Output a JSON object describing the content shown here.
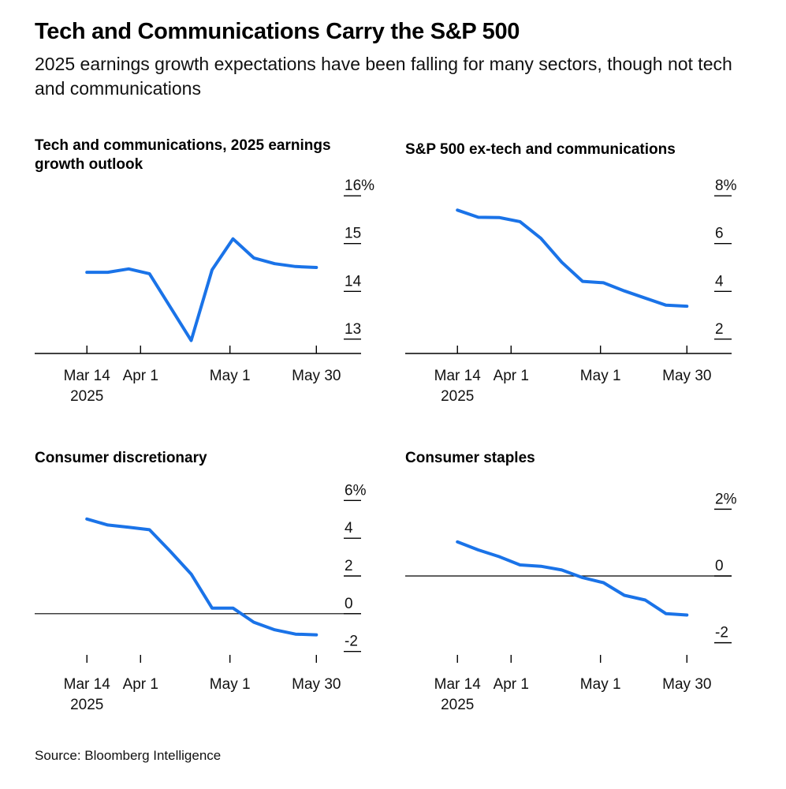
{
  "header": {
    "title": "Tech and Communications Carry the S&P 500",
    "subtitle": "2025 earnings growth expectations have been falling for many sectors, though not tech and communications"
  },
  "footer": {
    "source": "Source: Bloomberg Intelligence"
  },
  "colors": {
    "line": "#1a73e8",
    "axis": "#000000",
    "text": "#111111"
  },
  "chart_data": [
    {
      "type": "line",
      "title": "Tech and communications, 2025 earnings growth outlook",
      "title_lines": [
        "Tech and communications, 2025 earnings",
        "growth outlook"
      ],
      "x_ticks": [
        {
          "day": 0,
          "label": "Mar 14",
          "sublabel": "2025"
        },
        {
          "day": 18,
          "label": "Apr 1"
        },
        {
          "day": 48,
          "label": "May 1"
        },
        {
          "day": 77,
          "label": "May 30"
        }
      ],
      "y_ticks": [
        {
          "value": 16,
          "label": "16%"
        },
        {
          "value": 15,
          "label": "15"
        },
        {
          "value": 14,
          "label": "14"
        },
        {
          "value": 13,
          "label": "13"
        }
      ],
      "ylim": [
        12.7,
        16.3
      ],
      "zero_line": false,
      "x_domain": [
        -8,
        92
      ],
      "points": [
        [
          0,
          14.4
        ],
        [
          7,
          14.4
        ],
        [
          14,
          14.47
        ],
        [
          21,
          14.37
        ],
        [
          35,
          12.97
        ],
        [
          42,
          14.45
        ],
        [
          49,
          15.1
        ],
        [
          56,
          14.7
        ],
        [
          63,
          14.58
        ],
        [
          70,
          14.52
        ],
        [
          77,
          14.5
        ]
      ]
    },
    {
      "type": "line",
      "title": "S&P 500 ex-tech and communications",
      "title_lines": [
        "S&P 500 ex-tech and communications"
      ],
      "x_ticks": [
        {
          "day": 0,
          "label": "Mar 14",
          "sublabel": "2025"
        },
        {
          "day": 18,
          "label": "Apr 1"
        },
        {
          "day": 48,
          "label": "May 1"
        },
        {
          "day": 77,
          "label": "May 30"
        }
      ],
      "y_ticks": [
        {
          "value": 8,
          "label": "8%"
        },
        {
          "value": 6,
          "label": "6"
        },
        {
          "value": 4,
          "label": "4"
        },
        {
          "value": 2,
          "label": "2"
        }
      ],
      "ylim": [
        1.4,
        8.6
      ],
      "zero_line": false,
      "x_domain": [
        -8,
        92
      ],
      "points": [
        [
          0,
          7.4
        ],
        [
          7,
          7.1
        ],
        [
          14,
          7.09
        ],
        [
          21,
          6.92
        ],
        [
          28,
          6.22
        ],
        [
          35,
          5.22
        ],
        [
          42,
          4.42
        ],
        [
          49,
          4.36
        ],
        [
          56,
          4.02
        ],
        [
          63,
          3.72
        ],
        [
          70,
          3.42
        ],
        [
          77,
          3.38
        ]
      ]
    },
    {
      "type": "line",
      "title": "Consumer discretionary",
      "title_lines": [
        "Consumer discretionary"
      ],
      "x_ticks": [
        {
          "day": 0,
          "label": "Mar 14",
          "sublabel": "2025"
        },
        {
          "day": 18,
          "label": "Apr 1"
        },
        {
          "day": 48,
          "label": "May 1"
        },
        {
          "day": 77,
          "label": "May 30"
        }
      ],
      "y_ticks": [
        {
          "value": 6,
          "label": "6%"
        },
        {
          "value": 4,
          "label": "4"
        },
        {
          "value": 2,
          "label": "2"
        },
        {
          "value": 0,
          "label": "0"
        },
        {
          "value": -2,
          "label": "-2"
        }
      ],
      "ylim": [
        -2.6,
        6.6
      ],
      "zero_line": true,
      "x_domain": [
        -8,
        92
      ],
      "points": [
        [
          0,
          5.02
        ],
        [
          7,
          4.7
        ],
        [
          14,
          4.58
        ],
        [
          21,
          4.45
        ],
        [
          28,
          3.3
        ],
        [
          35,
          2.1
        ],
        [
          42,
          0.3
        ],
        [
          49,
          0.3
        ],
        [
          56,
          -0.45
        ],
        [
          63,
          -0.85
        ],
        [
          70,
          -1.08
        ],
        [
          77,
          -1.12
        ]
      ]
    },
    {
      "type": "line",
      "title": "Consumer staples",
      "title_lines": [
        "Consumer staples"
      ],
      "x_ticks": [
        {
          "day": 0,
          "label": "Mar 14",
          "sublabel": "2025"
        },
        {
          "day": 18,
          "label": "Apr 1"
        },
        {
          "day": 48,
          "label": "May 1"
        },
        {
          "day": 77,
          "label": "May 30"
        }
      ],
      "y_ticks": [
        {
          "value": 2,
          "label": "2%"
        },
        {
          "value": 0,
          "label": "0"
        },
        {
          "value": -2,
          "label": "-2"
        }
      ],
      "ylim": [
        -2.6,
        2.6
      ],
      "zero_line": true,
      "x_domain": [
        -8,
        92
      ],
      "points": [
        [
          0,
          1.02
        ],
        [
          7,
          0.78
        ],
        [
          14,
          0.58
        ],
        [
          21,
          0.33
        ],
        [
          28,
          0.29
        ],
        [
          35,
          0.18
        ],
        [
          42,
          -0.05
        ],
        [
          49,
          -0.2
        ],
        [
          56,
          -0.58
        ],
        [
          63,
          -0.72
        ],
        [
          70,
          -1.13
        ],
        [
          77,
          -1.17
        ]
      ]
    }
  ]
}
